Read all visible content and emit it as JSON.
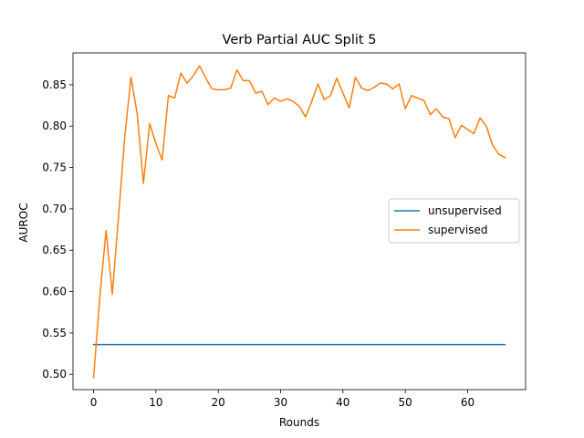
{
  "chart_data": {
    "type": "line",
    "title": "Verb Partial AUC Split 5",
    "xlabel": "Rounds",
    "ylabel": "AUROC",
    "xlim": [
      -3.3,
      69.3
    ],
    "ylim": [
      0.4815,
      0.8885
    ],
    "xticks": [
      0,
      10,
      20,
      30,
      40,
      50,
      60
    ],
    "yticks": [
      0.5,
      0.55,
      0.6,
      0.65,
      0.7,
      0.75,
      0.8,
      0.85
    ],
    "ytick_labels": [
      "0.50",
      "0.55",
      "0.60",
      "0.65",
      "0.70",
      "0.75",
      "0.80",
      "0.85"
    ],
    "grid": false,
    "legend_position": "center-right",
    "series": [
      {
        "name": "unsupervised",
        "color": "#1f77b4",
        "x": [
          0,
          66
        ],
        "y": [
          0.536,
          0.536
        ]
      },
      {
        "name": "supervised",
        "color": "#ff7f0e",
        "x": [
          0,
          1,
          2,
          3,
          4,
          5,
          6,
          7,
          8,
          9,
          10,
          11,
          12,
          13,
          14,
          15,
          16,
          17,
          18,
          19,
          20,
          21,
          22,
          23,
          24,
          25,
          26,
          27,
          28,
          29,
          30,
          31,
          32,
          33,
          34,
          35,
          36,
          37,
          38,
          39,
          40,
          41,
          42,
          43,
          44,
          45,
          46,
          47,
          48,
          49,
          50,
          51,
          52,
          53,
          54,
          55,
          56,
          57,
          58,
          59,
          60,
          61,
          62,
          63,
          64,
          65,
          66
        ],
        "y": [
          0.496,
          0.593,
          0.674,
          0.597,
          0.69,
          0.787,
          0.859,
          0.815,
          0.731,
          0.803,
          0.779,
          0.759,
          0.837,
          0.834,
          0.864,
          0.852,
          0.861,
          0.873,
          0.858,
          0.845,
          0.844,
          0.844,
          0.846,
          0.868,
          0.855,
          0.855,
          0.84,
          0.842,
          0.826,
          0.834,
          0.83,
          0.833,
          0.83,
          0.824,
          0.811,
          0.83,
          0.851,
          0.832,
          0.837,
          0.858,
          0.84,
          0.822,
          0.859,
          0.846,
          0.843,
          0.847,
          0.852,
          0.851,
          0.845,
          0.851,
          0.821,
          0.837,
          0.834,
          0.831,
          0.814,
          0.821,
          0.811,
          0.809,
          0.786,
          0.801,
          0.796,
          0.791,
          0.81,
          0.8,
          0.777,
          0.766,
          0.762
        ]
      }
    ]
  }
}
